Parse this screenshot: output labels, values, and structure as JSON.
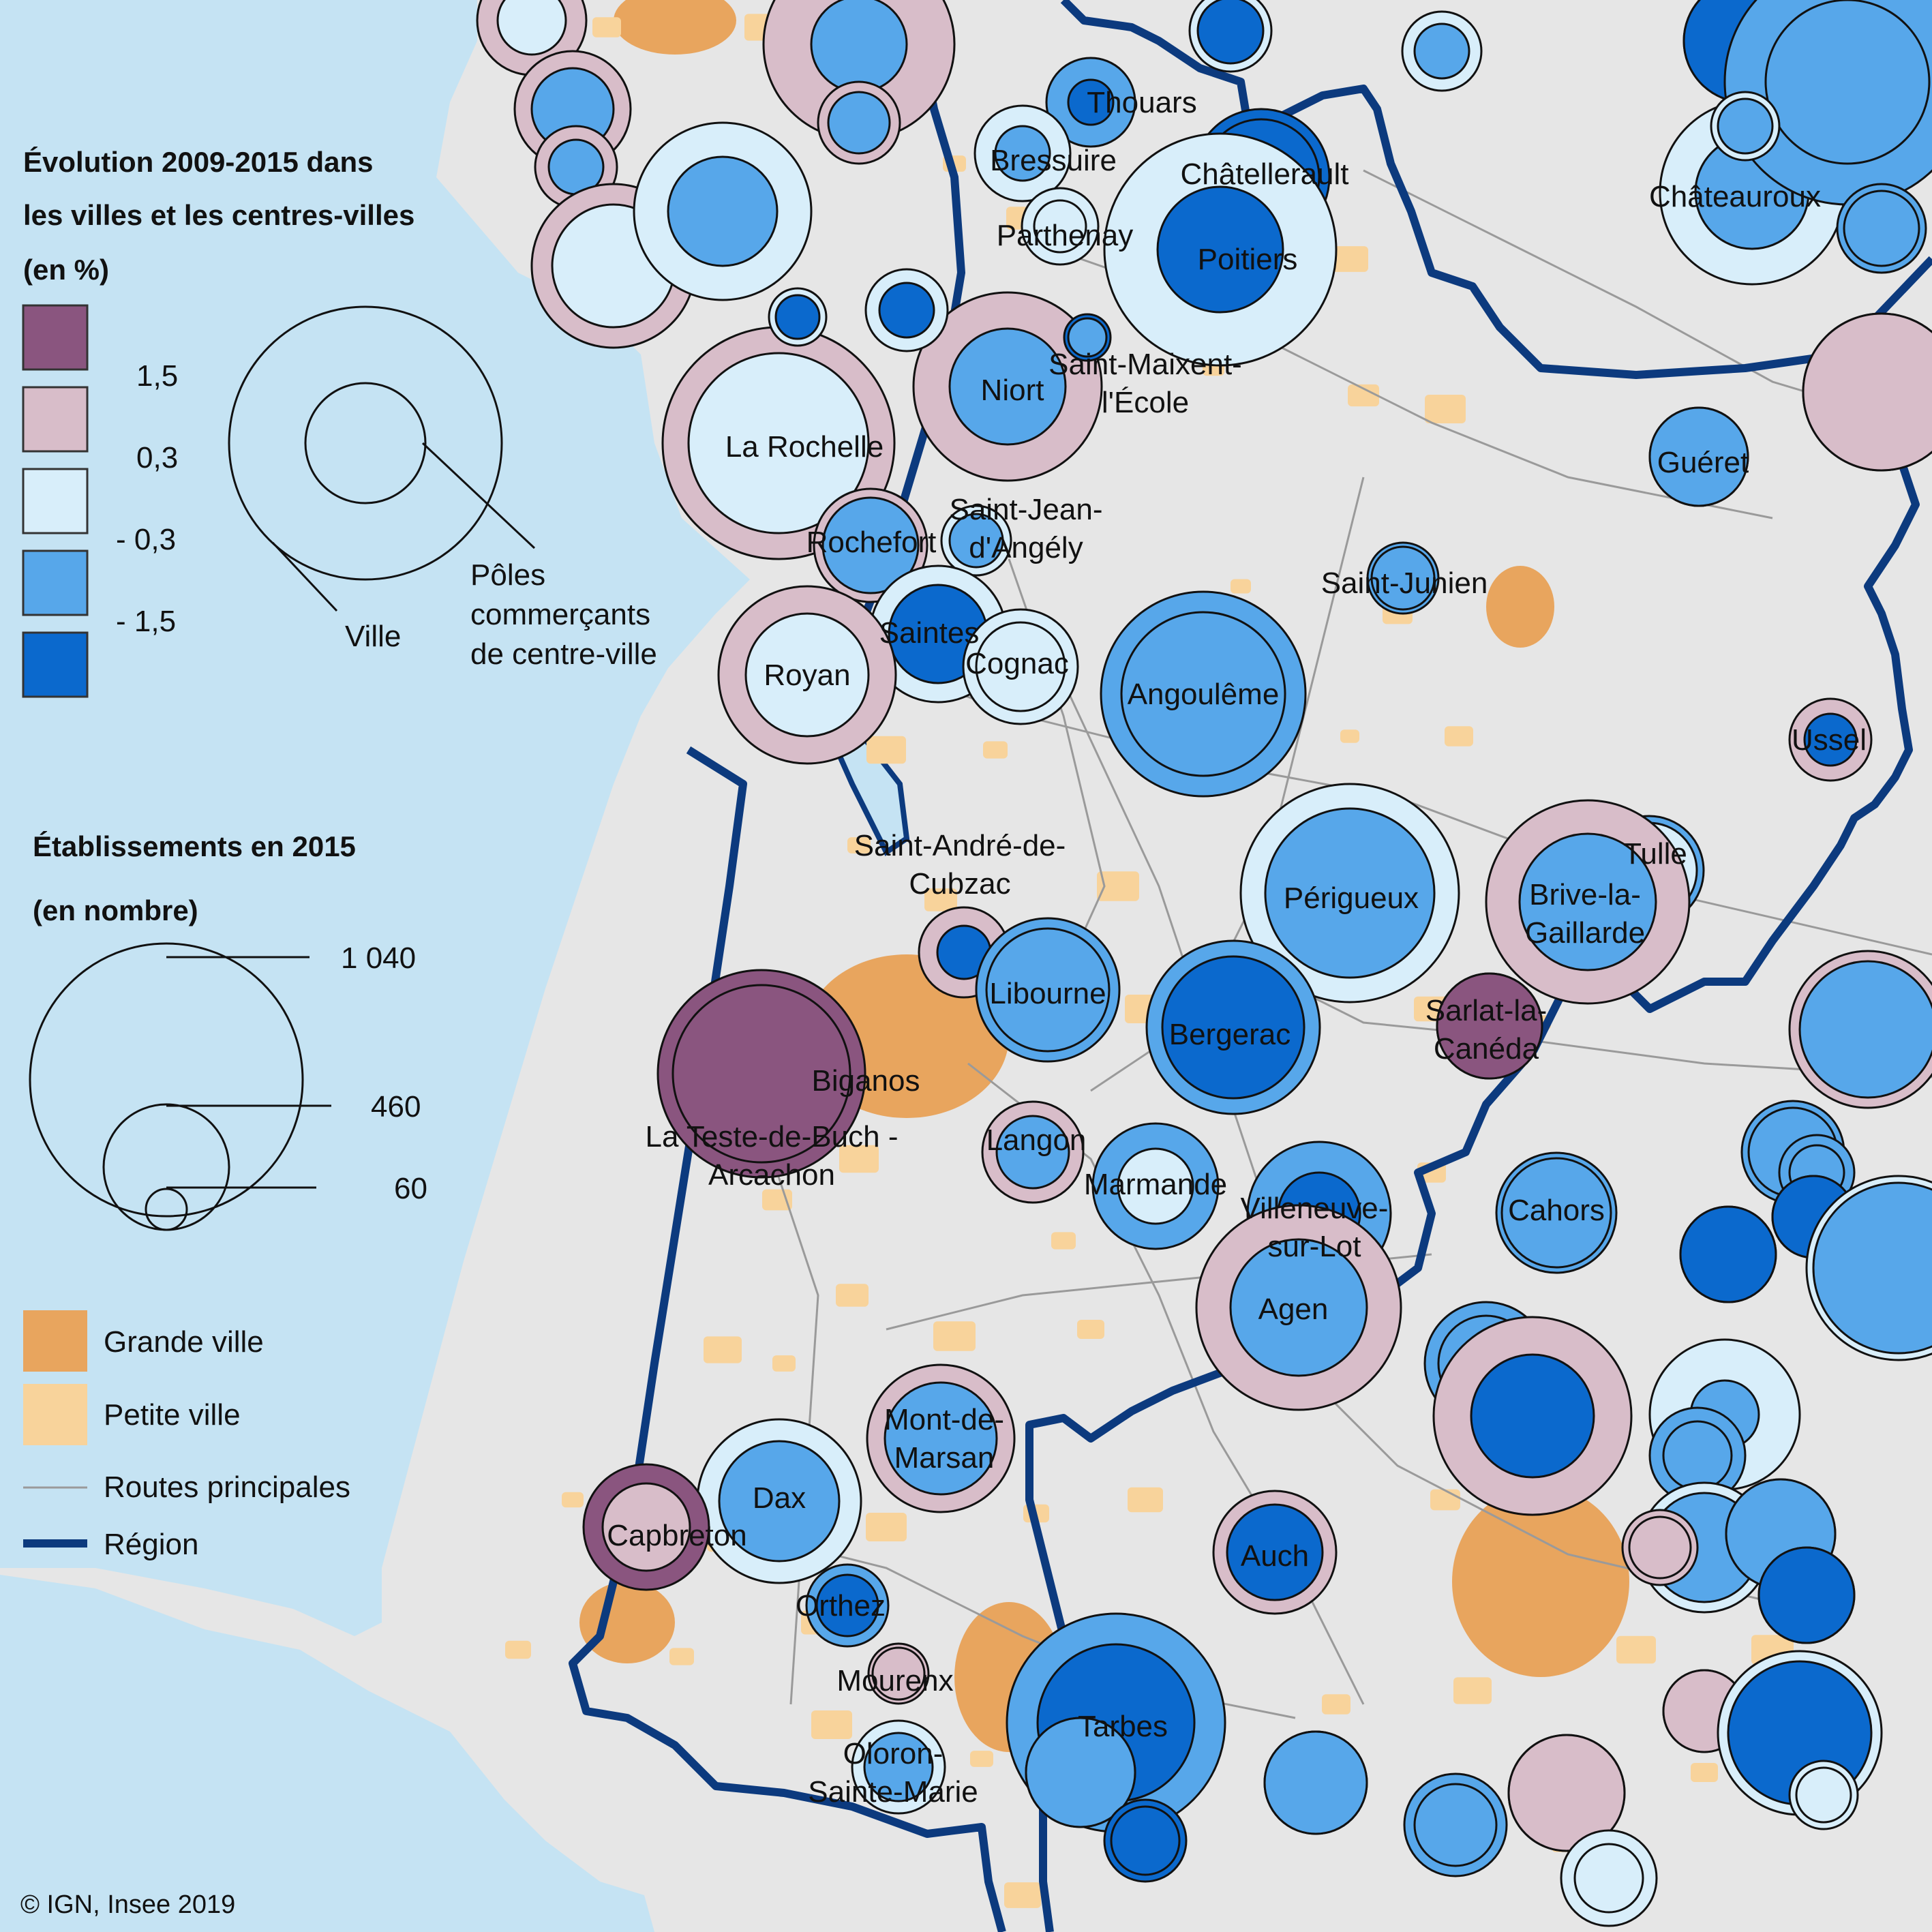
{
  "colors": {
    "sea": "#c5e3f3",
    "land": "#e6e6e6",
    "big_town": "#e8a55e",
    "small_town": "#f8d39b",
    "road": "#9a9a9a",
    "region": "#0c3a7e",
    "classes": [
      "#8a557f",
      "#d8bdc9",
      "#d8eefa",
      "#57a7ea",
      "#0b69cd"
    ]
  },
  "legend": {
    "evolution": {
      "title_lines": [
        "Évolution 2009-2015 dans",
        "les villes et les centres-villes",
        "(en %)"
      ],
      "thresholds": [
        "1,5",
        "0,3",
        "- 0,3",
        "- 1,5"
      ],
      "schema_outer": "Ville",
      "schema_inner_lines": [
        "Pôles",
        "commerçants",
        "de centre-ville"
      ]
    },
    "establishments": {
      "title_lines": [
        "Établissements en 2015",
        "(en nombre)"
      ],
      "values": [
        "1 040",
        "460",
        "60"
      ]
    },
    "layers": {
      "big_town": "Grande ville",
      "small_town": "Petite ville",
      "roads": "Routes principales",
      "region": "Région"
    }
  },
  "copyright": "© IGN, Insee 2019",
  "cities": [
    {
      "lines": [
        "Thouars"
      ],
      "ville": 3,
      "centre": 4
    },
    {
      "lines": [
        "Bressuire"
      ],
      "ville": 2,
      "centre": 3
    },
    {
      "lines": [
        "Châtellerault"
      ],
      "ville": 4,
      "centre": 4
    },
    {
      "lines": [
        "Parthenay"
      ],
      "ville": 2,
      "centre": 2
    },
    {
      "lines": [
        "Poitiers"
      ],
      "ville": 2,
      "centre": 4
    },
    {
      "lines": [
        "Châteauroux"
      ],
      "ville": 2,
      "centre": 3
    },
    {
      "lines": [
        "Niort"
      ],
      "ville": 1,
      "centre": 3
    },
    {
      "lines": [
        "Saint-Maixent-",
        "l'École"
      ],
      "ville": 4,
      "centre": 3
    },
    {
      "lines": [
        "La Rochelle"
      ],
      "ville": 1,
      "centre": 2
    },
    {
      "lines": [
        "Guéret"
      ],
      "ville": 3,
      "centre": 3
    },
    {
      "lines": [
        "Rochefort"
      ],
      "ville": 1,
      "centre": 3
    },
    {
      "lines": [
        "Saint-Jean-",
        "d'Angély"
      ],
      "ville": 2,
      "centre": 3
    },
    {
      "lines": [
        "Saint-Junien"
      ],
      "ville": 3,
      "centre": 3
    },
    {
      "lines": [
        "Saintes"
      ],
      "ville": 2,
      "centre": 4
    },
    {
      "lines": [
        "Royan"
      ],
      "ville": 1,
      "centre": 2
    },
    {
      "lines": [
        "Cognac"
      ],
      "ville": 2,
      "centre": 2
    },
    {
      "lines": [
        "Angoulême"
      ],
      "ville": 3,
      "centre": 3
    },
    {
      "lines": [
        "Ussel"
      ],
      "ville": 1,
      "centre": 4
    },
    {
      "lines": [
        "Tulle"
      ],
      "ville": 3,
      "centre": 2
    },
    {
      "lines": [
        "Saint-André-de-",
        "Cubzac"
      ],
      "ville": 1,
      "centre": 4
    },
    {
      "lines": [
        "Périgueux"
      ],
      "ville": 2,
      "centre": 3
    },
    {
      "lines": [
        "Brive-la-",
        "Gaillarde"
      ],
      "ville": 1,
      "centre": 3
    },
    {
      "lines": [
        "Libourne"
      ],
      "ville": 3,
      "centre": 3
    },
    {
      "lines": [
        "Bergerac"
      ],
      "ville": 3,
      "centre": 4
    },
    {
      "lines": [
        "Sarlat-la-",
        "Canéda"
      ],
      "ville": 0,
      "centre": 0
    },
    {
      "lines": [
        "Biganos"
      ],
      "ville": 0,
      "centre": 0
    },
    {
      "lines": [
        "La Teste-de-Buch -",
        "Arcachon"
      ],
      "ville": 0,
      "centre": 0
    },
    {
      "lines": [
        "Langon"
      ],
      "ville": 1,
      "centre": 3
    },
    {
      "lines": [
        "Marmande"
      ],
      "ville": 3,
      "centre": 2
    },
    {
      "lines": [
        "Villeneuve-",
        "sur-Lot"
      ],
      "ville": 3,
      "centre": 4
    },
    {
      "lines": [
        "Cahors"
      ],
      "ville": 3,
      "centre": 3
    },
    {
      "lines": [
        "Agen"
      ],
      "ville": 1,
      "centre": 3
    },
    {
      "lines": [
        "Mont-de-",
        "Marsan"
      ],
      "ville": 1,
      "centre": 3
    },
    {
      "lines": [
        "Dax"
      ],
      "ville": 2,
      "centre": 3
    },
    {
      "lines": [
        "Capbreton"
      ],
      "ville": 0,
      "centre": 1
    },
    {
      "lines": [
        "Auch"
      ],
      "ville": 1,
      "centre": 4
    },
    {
      "lines": [
        "Orthez"
      ],
      "ville": 3,
      "centre": 4
    },
    {
      "lines": [
        "Mourenx"
      ],
      "ville": 1,
      "centre": 1
    },
    {
      "lines": [
        "Tarbes"
      ],
      "ville": 3,
      "centre": 4
    },
    {
      "lines": [
        "Oloron-",
        "Sainte-Marie"
      ],
      "ville": 2,
      "centre": 3
    }
  ]
}
